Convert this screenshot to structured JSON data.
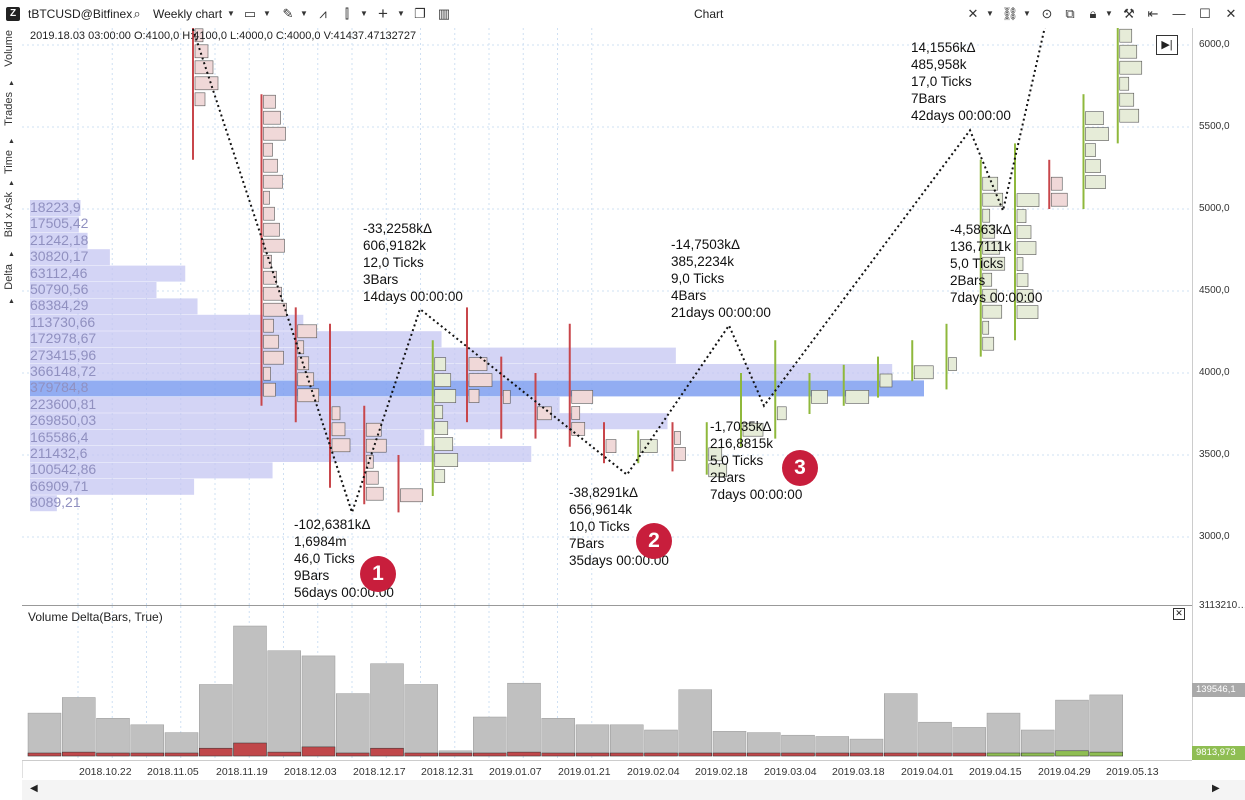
{
  "toolbar": {
    "symbol": "tBTCUSD@Bitfinex",
    "chart_type": "Weekly chart",
    "window_title": "Chart"
  },
  "sidebar_tabs": [
    "Volume",
    "Trades",
    "Time",
    "Bid x Ask",
    "Delta"
  ],
  "ohlc_readout": "2019.18.03 03:00:00 O:4100,0 H:4100,0 L:4000,0 C:4000,0 V:41437.47132727",
  "price_ticks": [
    "6000,0",
    "5500,0",
    "5000,0",
    "4500,0",
    "4000,0",
    "3500,0",
    "3000,0"
  ],
  "price_tag": "3113210…",
  "delta_panel": {
    "title": "Volume Delta(Bars, True)",
    "tag_high": "139546,1",
    "tag_low": "9813,973"
  },
  "time_ticks": [
    "2018.10.22",
    "2018.11.05",
    "2018.11.19",
    "2018.12.03",
    "2018.12.17",
    "2018.12.31",
    "2019.01.07",
    "2019.01.21",
    "2019.02.04",
    "2019.02.18",
    "2019.03.04",
    "2019.03.18",
    "2019.04.01",
    "2019.04.15",
    "2019.04.29",
    "2019.05.13"
  ],
  "volume_profile": [
    {
      "label": "18223,9",
      "value": 18223.9
    },
    {
      "label": "17505,42",
      "value": 17505.42
    },
    {
      "label": "21242,18",
      "value": 21242.18
    },
    {
      "label": "30820,17",
      "value": 30820.17
    },
    {
      "label": "63112,46",
      "value": 63112.46
    },
    {
      "label": "50790,56",
      "value": 50790.56
    },
    {
      "label": "68384,29",
      "value": 68384.29
    },
    {
      "label": "113730,66",
      "value": 113730.66
    },
    {
      "label": "172978,67",
      "value": 172978.67
    },
    {
      "label": "273415,96",
      "value": 273415.96
    },
    {
      "label": "366148,72",
      "value": 366148.72
    },
    {
      "label": "379784,8",
      "value": 379784.8
    },
    {
      "label": "223600,81",
      "value": 223600.81
    },
    {
      "label": "269850,03",
      "value": 269850.03
    },
    {
      "label": "165586,4",
      "value": 165586.4
    },
    {
      "label": "211432,6",
      "value": 211432.6
    },
    {
      "label": "100542,86",
      "value": 100542.86
    },
    {
      "label": "66909,71",
      "value": 66909.71
    },
    {
      "label": "8089,21",
      "value": 8089.21
    }
  ],
  "annotations": [
    {
      "lines": [
        "-102,6381kΔ",
        "1,6984m",
        "46,0 Ticks",
        "9Bars",
        "56days 00:00:00"
      ]
    },
    {
      "lines": [
        "-33,2258kΔ",
        "606,9182k",
        "12,0 Ticks",
        "3Bars",
        "14days 00:00:00"
      ]
    },
    {
      "lines": [
        "-38,8291kΔ",
        "656,9614k",
        "10,0 Ticks",
        "7Bars",
        "35days 00:00:00"
      ]
    },
    {
      "lines": [
        "-14,7503kΔ",
        "385,2234k",
        "9,0 Ticks",
        "4Bars",
        "21days 00:00:00"
      ]
    },
    {
      "lines": [
        "-1,7035kΔ",
        "216,8815k",
        "5,0 Ticks",
        "2Bars",
        "7days 00:00:00"
      ]
    },
    {
      "lines": [
        "14,1556kΔ",
        "485,958k",
        "17,0 Ticks",
        "7Bars",
        "42days 00:00:00"
      ]
    },
    {
      "lines": [
        "-4,5863kΔ",
        "136,7111k",
        "5,0 Ticks",
        "2Bars",
        "7days 00:00:00"
      ]
    }
  ],
  "badges": [
    "1",
    "2",
    "3"
  ],
  "zigzag_prices": [
    6300,
    3150,
    4390,
    3380,
    4290,
    3800,
    5480,
    4990,
    6300
  ],
  "volume_bars": [
    0.33,
    0.45,
    0.29,
    0.24,
    0.18,
    0.55,
    1.0,
    0.81,
    0.77,
    0.48,
    0.71,
    0.55,
    0.04,
    0.3,
    0.56,
    0.29,
    0.24,
    0.24,
    0.2,
    0.51,
    0.19,
    0.18,
    0.16,
    0.15,
    0.13,
    0.48,
    0.26,
    0.22,
    0.33,
    0.2,
    0.43,
    0.47
  ],
  "delta_bars": [
    -0.02,
    -0.03,
    -0.01,
    -0.02,
    -0.01,
    -0.06,
    -0.1,
    -0.03,
    -0.07,
    -0.02,
    -0.06,
    -0.02,
    -0.01,
    -0.01,
    -0.03,
    -0.01,
    -0.01,
    -0.01,
    -0.01,
    -0.02,
    -0.01,
    -0.01,
    -0.01,
    -0.01,
    -0.01,
    -0.01,
    -0.01,
    -0.01,
    0.01,
    0.01,
    0.04,
    0.03
  ],
  "colors": {
    "profile": "#c4c6f2",
    "poc": "#7f9ff0",
    "down": "#c8464b",
    "up": "#8fb83c",
    "volume": "#c0c0c0",
    "delta_neg": "#c0474a",
    "delta_pos": "#8fbe53"
  }
}
